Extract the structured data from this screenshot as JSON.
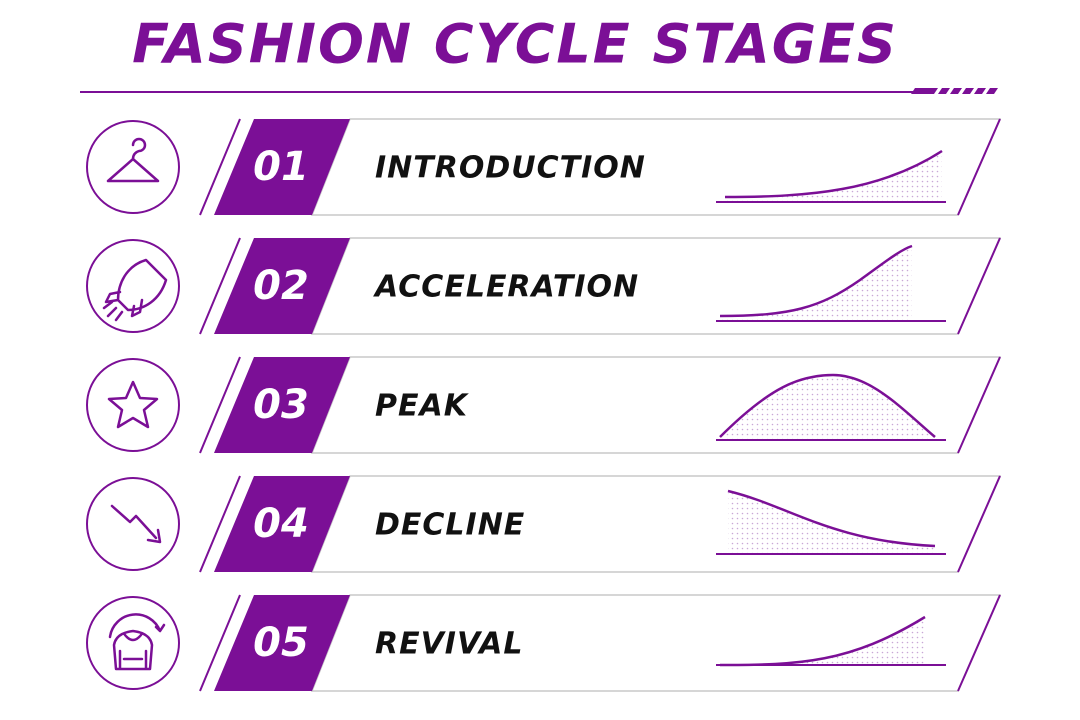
{
  "header": {
    "title": "FASHION CYCLE STAGES"
  },
  "stages": [
    {
      "number": "01",
      "label": "INTRODUCTION"
    },
    {
      "number": "02",
      "label": "ACCELERATION"
    },
    {
      "number": "03",
      "label": "PEAK"
    },
    {
      "number": "04",
      "label": "DECLINE"
    },
    {
      "number": "05",
      "label": "REVIVAL"
    }
  ]
}
